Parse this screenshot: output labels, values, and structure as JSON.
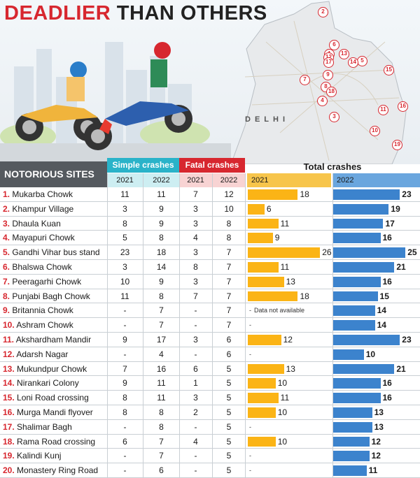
{
  "title": {
    "part1": "DEADLIER",
    "part2": "THAN OTHERS"
  },
  "map": {
    "label": "DELHI",
    "markers": [
      "1",
      "2",
      "3",
      "4",
      "5",
      "6",
      "7",
      "8",
      "9",
      "10",
      "11",
      "12",
      "13",
      "14",
      "15",
      "16",
      "17",
      "18",
      "19"
    ]
  },
  "table": {
    "sites_header": "NOTORIOUS SITES",
    "simple_header": "Simple crashes",
    "fatal_header": "Fatal crashes",
    "total_header": "Total crashes",
    "year_2021": "2021",
    "year_2022": "2022",
    "na_note": "Data not available"
  },
  "colors": {
    "simple": "#2ab3c9",
    "fatal": "#d7272f",
    "bar2021": "#fbb416",
    "bar2022": "#3c83cd"
  },
  "chart_data": {
    "type": "bar",
    "title": "Total crashes",
    "series": [
      {
        "name": "2021",
        "values": [
          18,
          6,
          11,
          9,
          26,
          11,
          13,
          18,
          null,
          null,
          12,
          null,
          13,
          10,
          11,
          10,
          null,
          10,
          null,
          null
        ]
      },
      {
        "name": "2022",
        "values": [
          23,
          19,
          17,
          16,
          25,
          21,
          16,
          15,
          14,
          14,
          23,
          10,
          21,
          16,
          16,
          13,
          13,
          12,
          12,
          11
        ]
      }
    ],
    "rows": [
      {
        "num": "1.",
        "name": "Mukarba Chowk",
        "s21": "11",
        "s22": "11",
        "f21": "7",
        "f22": "12"
      },
      {
        "num": "2.",
        "name": "Khampur Village",
        "s21": "3",
        "s22": "9",
        "f21": "3",
        "f22": "10"
      },
      {
        "num": "3.",
        "name": "Dhaula Kuan",
        "s21": "8",
        "s22": "9",
        "f21": "3",
        "f22": "8"
      },
      {
        "num": "4.",
        "name": "Mayapuri Chowk",
        "s21": "5",
        "s22": "8",
        "f21": "4",
        "f22": "8"
      },
      {
        "num": "5.",
        "name": "Gandhi Vihar bus stand",
        "s21": "23",
        "s22": "18",
        "f21": "3",
        "f22": "7"
      },
      {
        "num": "6.",
        "name": "Bhalswa Chowk",
        "s21": "3",
        "s22": "14",
        "f21": "8",
        "f22": "7"
      },
      {
        "num": "7.",
        "name": "Peeragarhi Chowk",
        "s21": "10",
        "s22": "9",
        "f21": "3",
        "f22": "7"
      },
      {
        "num": "8.",
        "name": "Punjabi Bagh Chowk",
        "s21": "11",
        "s22": "8",
        "f21": "7",
        "f22": "7"
      },
      {
        "num": "9.",
        "name": "Britannia Chowk",
        "s21": "-",
        "s22": "7",
        "f21": "-",
        "f22": "7"
      },
      {
        "num": "10.",
        "name": "Ashram Chowk",
        "s21": "-",
        "s22": "7",
        "f21": "-",
        "f22": "7"
      },
      {
        "num": "11.",
        "name": "Akshardham Mandir",
        "s21": "9",
        "s22": "17",
        "f21": "3",
        "f22": "6"
      },
      {
        "num": "12.",
        "name": "Adarsh Nagar",
        "s21": "-",
        "s22": "4",
        "f21": "-",
        "f22": "6"
      },
      {
        "num": "13.",
        "name": "Mukundpur Chowk",
        "s21": "7",
        "s22": "16",
        "f21": "6",
        "f22": "5"
      },
      {
        "num": "14.",
        "name": "Nirankari Colony",
        "s21": "9",
        "s22": "11",
        "f21": "1",
        "f22": "5"
      },
      {
        "num": "15.",
        "name": "Loni Road crossing",
        "s21": "8",
        "s22": "11",
        "f21": "3",
        "f22": "5"
      },
      {
        "num": "16.",
        "name": "Murga Mandi flyover",
        "s21": "8",
        "s22": "8",
        "f21": "2",
        "f22": "5"
      },
      {
        "num": "17.",
        "name": "Shalimar Bagh",
        "s21": "-",
        "s22": "8",
        "f21": "-",
        "f22": "5"
      },
      {
        "num": "18.",
        "name": "Rama Road crossing",
        "s21": "6",
        "s22": "7",
        "f21": "4",
        "f22": "5"
      },
      {
        "num": "19.",
        "name": "Kalindi Kunj",
        "s21": "-",
        "s22": "7",
        "f21": "-",
        "f22": "5"
      },
      {
        "num": "20.",
        "name": "Monastery Ring Road",
        "s21": "-",
        "s22": "6",
        "f21": "-",
        "f22": "5"
      }
    ]
  }
}
